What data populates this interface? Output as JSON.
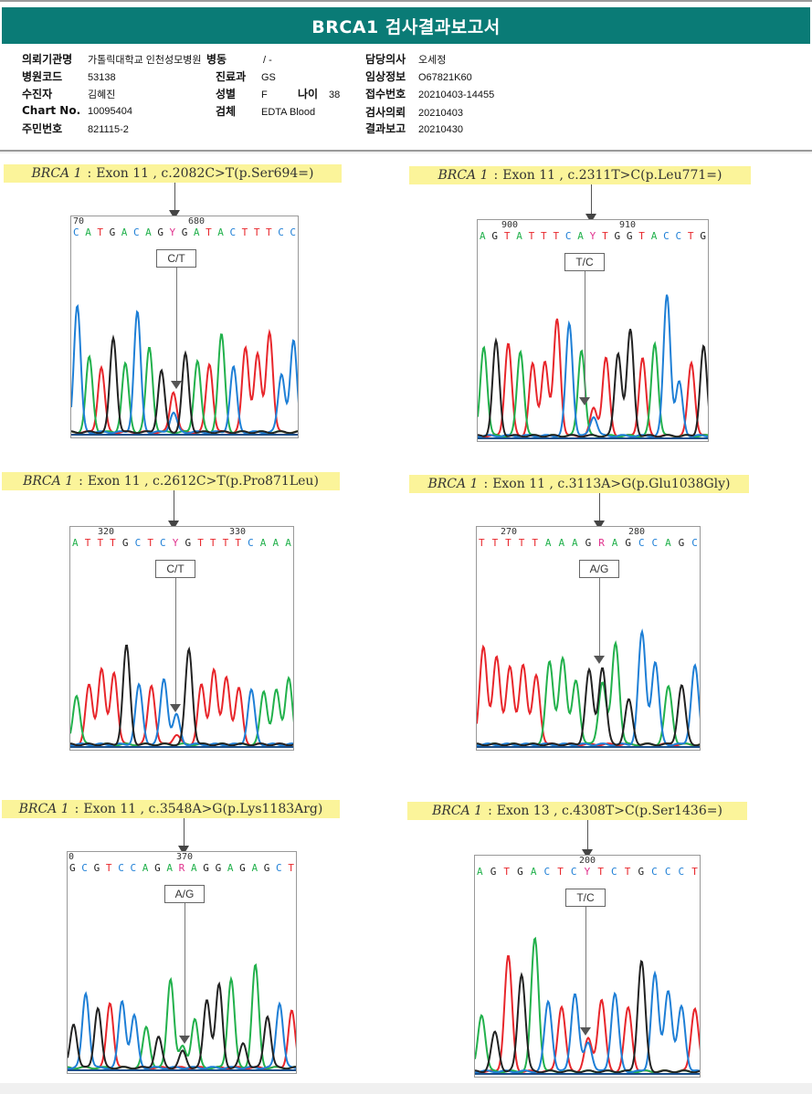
{
  "report": {
    "title": "BRCA1 검사결과보고서",
    "fields": {
      "institution": {
        "label": "의뢰기관명",
        "value": "가톨릭대학교 인천성모병원"
      },
      "ward": {
        "label": "병동",
        "value": "/ -"
      },
      "physician": {
        "label": "담당의사",
        "value": "오세정"
      },
      "hospital_code": {
        "label": "병원코드",
        "value": "53138"
      },
      "department": {
        "label": "진료과",
        "value": "GS"
      },
      "clinical_info": {
        "label": "임상정보",
        "value": "O67821K60"
      },
      "patient": {
        "label": "수진자",
        "value": "김혜진"
      },
      "sex": {
        "label": "성별",
        "value": "F"
      },
      "age": {
        "label": "나이",
        "value": "38"
      },
      "receipt_no": {
        "label": "접수번호",
        "value": "20210403-14455"
      },
      "chart_no": {
        "label": "Chart No.",
        "value": "10095404"
      },
      "specimen": {
        "label": "검체",
        "value": "EDTA Blood"
      },
      "request_date": {
        "label": "검사의뢰",
        "value": "20210403"
      },
      "resident_no": {
        "label": "주민번호",
        "value": "821115-2"
      },
      "report_date": {
        "label": "결과보고",
        "value": "20210430"
      }
    }
  },
  "colors": {
    "header_bg": "#0a7b76",
    "caption_bg": "#fbf49a",
    "base_A": "#22b14c",
    "base_C": "#1e7fd6",
    "base_G": "#222222",
    "base_T": "#e8262b",
    "base_ambiguous": "#e0308c"
  },
  "variants": [
    {
      "gene": "BRCA 1",
      "sep": ":",
      "desc": "Exon 11 , c.2082C>T(p.Ser694=)",
      "pos_left": "70",
      "pos_right": "680",
      "sequence": "CATGACAGYGATACTTTCC",
      "call": "C/T",
      "peaks": [
        {
          "b": "C",
          "h": 0.78
        },
        {
          "b": "A",
          "h": 0.46
        },
        {
          "b": "T",
          "h": 0.4
        },
        {
          "b": "G",
          "h": 0.58
        },
        {
          "b": "A",
          "h": 0.42
        },
        {
          "b": "C",
          "h": 0.74
        },
        {
          "b": "A",
          "h": 0.52
        },
        {
          "b": "G",
          "h": 0.38
        },
        {
          "b": "T",
          "h": 0.25,
          "s": "C",
          "sh": 0.12
        },
        {
          "b": "G",
          "h": 0.48
        },
        {
          "b": "A",
          "h": 0.44
        },
        {
          "b": "T",
          "h": 0.42
        },
        {
          "b": "A",
          "h": 0.6
        },
        {
          "b": "C",
          "h": 0.4
        },
        {
          "b": "T",
          "h": 0.52
        },
        {
          "b": "T",
          "h": 0.48
        },
        {
          "b": "T",
          "h": 0.62
        },
        {
          "b": "C",
          "h": 0.36
        },
        {
          "b": "C",
          "h": 0.56
        }
      ]
    },
    {
      "gene": "BRCA 1",
      "sep": ":",
      "desc": "Exon 11 , c.2311T>C(p.Leu771=)",
      "pos_left": "900",
      "pos_right": "910",
      "sequence": "AGTATTTCAYTGGTACCTG",
      "call": "T/C",
      "peaks": [
        {
          "b": "A",
          "h": 0.55
        },
        {
          "b": "G",
          "h": 0.58
        },
        {
          "b": "T",
          "h": 0.57
        },
        {
          "b": "A",
          "h": 0.52
        },
        {
          "b": "T",
          "h": 0.44
        },
        {
          "b": "T",
          "h": 0.46
        },
        {
          "b": "T",
          "h": 0.72
        },
        {
          "b": "C",
          "h": 0.69
        },
        {
          "b": "A",
          "h": 0.53
        },
        {
          "b": "T",
          "h": 0.17,
          "s": "C",
          "sh": 0.12
        },
        {
          "b": "T",
          "h": 0.48
        },
        {
          "b": "G",
          "h": 0.51
        },
        {
          "b": "G",
          "h": 0.65
        },
        {
          "b": "T",
          "h": 0.48
        },
        {
          "b": "A",
          "h": 0.57
        },
        {
          "b": "C",
          "h": 0.87
        },
        {
          "b": "C",
          "h": 0.33
        },
        {
          "b": "T",
          "h": 0.45
        },
        {
          "b": "G",
          "h": 0.55
        }
      ]
    },
    {
      "gene": "BRCA 1",
      "sep": ":",
      "desc": "Exon 11 , c.2612C>T(p.Pro871Leu)",
      "pos_left": "320",
      "pos_right": "330",
      "sequence": "ATTTGCTCYGTTTTCAAA",
      "call": "C/T",
      "peaks": [
        {
          "b": "A",
          "h": 0.3
        },
        {
          "b": "T",
          "h": 0.36
        },
        {
          "b": "T",
          "h": 0.46
        },
        {
          "b": "T",
          "h": 0.44
        },
        {
          "b": "G",
          "h": 0.6
        },
        {
          "b": "C",
          "h": 0.36
        },
        {
          "b": "T",
          "h": 0.36
        },
        {
          "b": "C",
          "h": 0.4
        },
        {
          "b": "C",
          "h": 0.18,
          "s": "T",
          "sh": 0.06
        },
        {
          "b": "G",
          "h": 0.58
        },
        {
          "b": "T",
          "h": 0.36
        },
        {
          "b": "T",
          "h": 0.46
        },
        {
          "b": "T",
          "h": 0.41
        },
        {
          "b": "T",
          "h": 0.34
        },
        {
          "b": "C",
          "h": 0.33
        },
        {
          "b": "A",
          "h": 0.32
        },
        {
          "b": "A",
          "h": 0.33
        },
        {
          "b": "A",
          "h": 0.41
        }
      ]
    },
    {
      "gene": "BRCA 1",
      "sep": ":",
      "desc": "Exon 11 , c.3113A>G(p.Glu1038Gly)",
      "pos_left": "270",
      "pos_right": "280",
      "sequence": "TTTTTAAAGRAGCCAGC",
      "call": "A/G",
      "peaks": [
        {
          "b": "T",
          "h": 0.6
        },
        {
          "b": "T",
          "h": 0.53
        },
        {
          "b": "T",
          "h": 0.47
        },
        {
          "b": "T",
          "h": 0.49
        },
        {
          "b": "T",
          "h": 0.42
        },
        {
          "b": "A",
          "h": 0.5
        },
        {
          "b": "A",
          "h": 0.53
        },
        {
          "b": "A",
          "h": 0.39
        },
        {
          "b": "G",
          "h": 0.45
        },
        {
          "b": "G",
          "h": 0.47,
          "s": "A",
          "sh": 0.38
        },
        {
          "b": "A",
          "h": 0.62
        },
        {
          "b": "G",
          "h": 0.27
        },
        {
          "b": "C",
          "h": 0.68
        },
        {
          "b": "C",
          "h": 0.5
        },
        {
          "b": "A",
          "h": 0.35
        },
        {
          "b": "G",
          "h": 0.36
        },
        {
          "b": "C",
          "h": 0.48
        }
      ]
    },
    {
      "gene": "BRCA 1",
      "sep": ":",
      "desc": "Exon 11 , c.3548A>G(p.Lys1183Arg)",
      "pos_left": "0",
      "pos_right": "370",
      "sequence": "GCGTCCAGARAGGAGAGCT",
      "call": "A/G",
      "peaks": [
        {
          "b": "G",
          "h": 0.27
        },
        {
          "b": "C",
          "h": 0.46
        },
        {
          "b": "G",
          "h": 0.37
        },
        {
          "b": "T",
          "h": 0.4
        },
        {
          "b": "C",
          "h": 0.41
        },
        {
          "b": "C",
          "h": 0.32
        },
        {
          "b": "A",
          "h": 0.25
        },
        {
          "b": "G",
          "h": 0.19
        },
        {
          "b": "A",
          "h": 0.55
        },
        {
          "b": "A",
          "h": 0.13,
          "s": "G",
          "sh": 0.1
        },
        {
          "b": "A",
          "h": 0.3
        },
        {
          "b": "G",
          "h": 0.42
        },
        {
          "b": "G",
          "h": 0.51
        },
        {
          "b": "A",
          "h": 0.55
        },
        {
          "b": "G",
          "h": 0.15
        },
        {
          "b": "A",
          "h": 0.63
        },
        {
          "b": "G",
          "h": 0.32
        },
        {
          "b": "C",
          "h": 0.4
        },
        {
          "b": "T",
          "h": 0.35
        }
      ]
    },
    {
      "gene": "BRCA 1",
      "sep": ":",
      "desc": "Exon 13 , c.4308T>C(p.Ser1436=)",
      "pos_left": "",
      "pos_right": "200",
      "sequence": "AGTGACTCYTCTGCCCT",
      "call": "T/C",
      "peaks": [
        {
          "b": "A",
          "h": 0.35
        },
        {
          "b": "G",
          "h": 0.24
        },
        {
          "b": "T",
          "h": 0.71
        },
        {
          "b": "G",
          "h": 0.6
        },
        {
          "b": "A",
          "h": 0.82
        },
        {
          "b": "C",
          "h": 0.43
        },
        {
          "b": "T",
          "h": 0.4
        },
        {
          "b": "C",
          "h": 0.48
        },
        {
          "b": "T",
          "h": 0.2,
          "s": "C",
          "sh": 0.18
        },
        {
          "b": "T",
          "h": 0.44
        },
        {
          "b": "C",
          "h": 0.48
        },
        {
          "b": "T",
          "h": 0.39
        },
        {
          "b": "G",
          "h": 0.68
        },
        {
          "b": "C",
          "h": 0.6
        },
        {
          "b": "C",
          "h": 0.5
        },
        {
          "b": "C",
          "h": 0.4
        },
        {
          "b": "T",
          "h": 0.39
        }
      ]
    }
  ]
}
